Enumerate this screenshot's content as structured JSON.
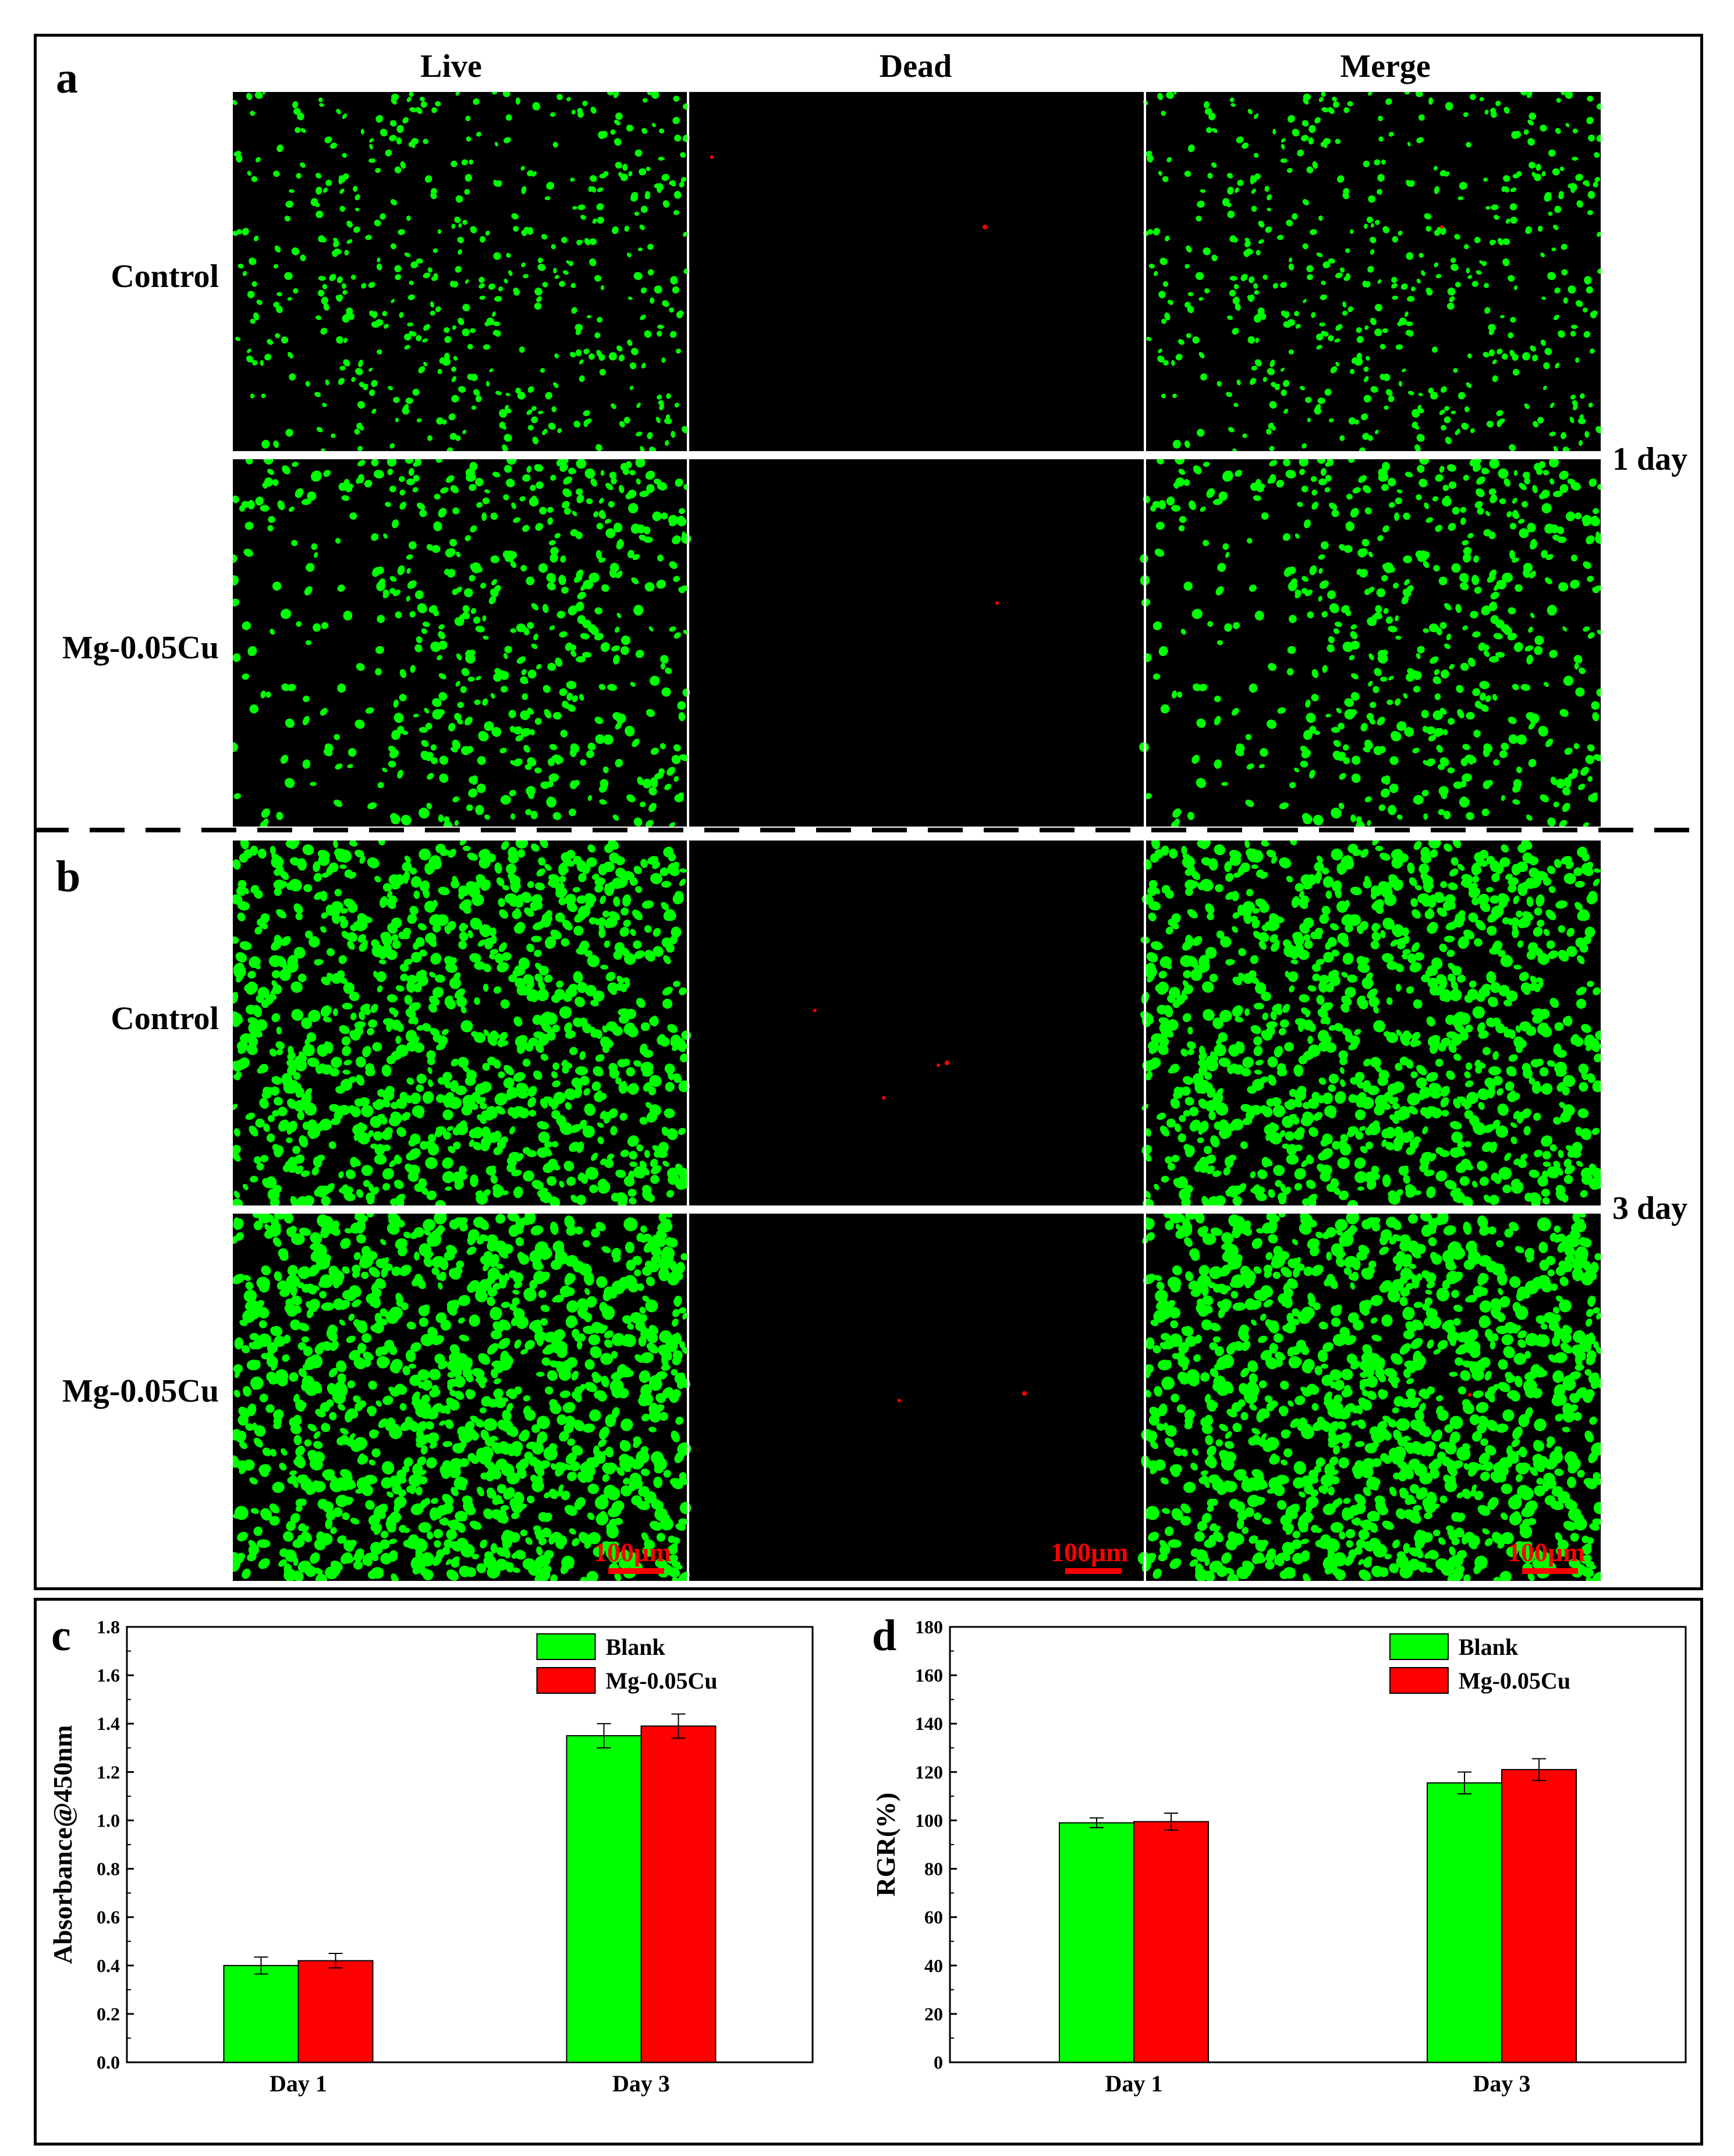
{
  "panels": {
    "a": {
      "letter": "a",
      "day_label": "1 day"
    },
    "b": {
      "letter": "b",
      "day_label": "3 day"
    },
    "c": {
      "letter": "c"
    },
    "d": {
      "letter": "d"
    }
  },
  "columns": [
    "Live",
    "Dead",
    "Merge"
  ],
  "rows": [
    "Control",
    "Mg-0.05Cu"
  ],
  "scale_bar": "100μm",
  "colors": {
    "live": "#00ff00",
    "dead": "#ff0000",
    "image_bg": "#000000",
    "blank_bar": "#00ff00",
    "mg_bar": "#ff0000"
  },
  "chart_data": [
    {
      "type": "bar",
      "panel": "c",
      "title": "",
      "categories": [
        "Day 1",
        "Day 3"
      ],
      "series": [
        {
          "name": "Blank",
          "color": "#00ff00",
          "values": [
            0.4,
            1.35
          ],
          "errors": [
            0.035,
            0.05
          ]
        },
        {
          "name": "Mg-0.05Cu",
          "color": "#ff0000",
          "values": [
            0.42,
            1.39
          ],
          "errors": [
            0.03,
            0.05
          ]
        }
      ],
      "xlabel": "",
      "ylabel": "Absorbance@450nm",
      "ylim": [
        0.0,
        1.8
      ],
      "yticks": [
        "0.0",
        "0.2",
        "0.4",
        "0.6",
        "0.8",
        "1.0",
        "1.2",
        "1.4",
        "1.6",
        "1.8"
      ],
      "legend": "top-right",
      "grid": false
    },
    {
      "type": "bar",
      "panel": "d",
      "title": "",
      "categories": [
        "Day 1",
        "Day 3"
      ],
      "series": [
        {
          "name": "Blank",
          "color": "#00ff00",
          "values": [
            99,
            115.5
          ],
          "errors": [
            2,
            4.5
          ]
        },
        {
          "name": "Mg-0.05Cu",
          "color": "#ff0000",
          "values": [
            99.5,
            121
          ],
          "errors": [
            3.5,
            4.5
          ]
        }
      ],
      "xlabel": "",
      "ylabel": "RGR(%)",
      "ylim": [
        0,
        180
      ],
      "yticks": [
        "0",
        "20",
        "40",
        "60",
        "80",
        "100",
        "120",
        "140",
        "160",
        "180"
      ],
      "legend": "top-right",
      "grid": false
    }
  ]
}
